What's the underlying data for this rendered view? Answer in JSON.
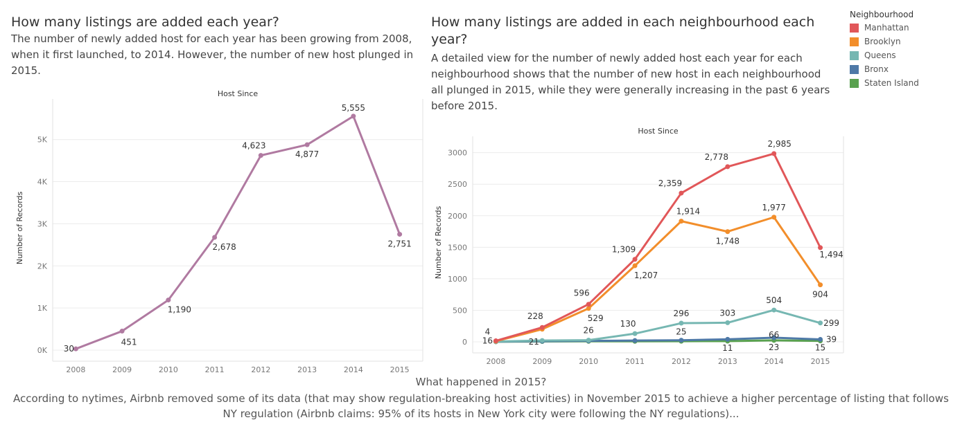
{
  "left": {
    "title": "How many listings are added each year?",
    "description": "The number of newly added host for each year has been growing from 2008, when it first launched, to 2014. However, the number of new host plunged in 2015."
  },
  "right": {
    "title": "How many listings are added in each neighbourhood each year?",
    "description": "A detailed view for the number of newly added host each year for each neighbourhood shows that the number of new host in each neighbourhood all plunged in 2015, while they were generally increasing in the past 6 years before 2015."
  },
  "legend": {
    "title": "Neighbourhood",
    "items": [
      {
        "label": "Manhattan",
        "color": "#e15759"
      },
      {
        "label": "Brooklyn",
        "color": "#f28e2b"
      },
      {
        "label": "Queens",
        "color": "#76b7b2"
      },
      {
        "label": "Bronx",
        "color": "#4e79a7"
      },
      {
        "label": "Staten Island",
        "color": "#59a14f"
      }
    ]
  },
  "footer": {
    "question": "What happened in 2015?",
    "text": "According to nytimes, Airbnb removed some of its data (that may show regulation-breaking host activities) in November 2015 to achieve a higher percentage of listing that follows NY regulation (Airbnb claims: 95% of its hosts in New York city were following the NY regulations)..."
  },
  "chart_data": [
    {
      "type": "line",
      "title": "Host Since",
      "xlabel": "",
      "ylabel": "Number of Records",
      "x": [
        "2008",
        "2009",
        "2010",
        "2011",
        "2012",
        "2013",
        "2014",
        "2015"
      ],
      "ylim": [
        0,
        5800
      ],
      "yticks": [
        0,
        1000,
        2000,
        3000,
        4000,
        5000
      ],
      "ytick_labels": [
        "0K",
        "1K",
        "2K",
        "3K",
        "4K",
        "5K"
      ],
      "series": [
        {
          "color": "#b07aa1",
          "values": [
            30,
            451,
            1190,
            2678,
            4623,
            4877,
            5555,
            2751
          ],
          "labels": [
            "30",
            "451",
            "1,190",
            "2,678",
            "4,623",
            "4,877",
            "5,555",
            "2,751"
          ]
        }
      ]
    },
    {
      "type": "line",
      "title": "Host Since",
      "xlabel": "",
      "ylabel": "Number of Records",
      "x": [
        "2008",
        "2009",
        "2010",
        "2011",
        "2012",
        "2013",
        "2014",
        "2015"
      ],
      "ylim": [
        0,
        3150
      ],
      "yticks": [
        0,
        500,
        1000,
        1500,
        2000,
        2500,
        3000
      ],
      "ytick_labels": [
        "0",
        "500",
        "1000",
        "1500",
        "2000",
        "2500",
        "3000"
      ],
      "series": [
        {
          "name": "Manhattan",
          "color": "#e15759",
          "values": [
            16,
            228,
            596,
            1309,
            2359,
            2778,
            2985,
            1494
          ],
          "labels": [
            "16",
            "228",
            "596",
            "1,309",
            "2,359",
            "2,778",
            "2,985",
            "1,494"
          ]
        },
        {
          "name": "Brooklyn",
          "color": "#f28e2b",
          "values": [
            10,
            200,
            529,
            1207,
            1914,
            1748,
            1977,
            904
          ],
          "labels": [
            "",
            "",
            "529",
            "1,207",
            "1,914",
            "1,748",
            "1,977",
            "904"
          ]
        },
        {
          "name": "Queens",
          "color": "#76b7b2",
          "values": [
            4,
            21,
            26,
            130,
            296,
            303,
            504,
            299
          ],
          "labels": [
            "4",
            "21",
            "26",
            "130",
            "296",
            "303",
            "504",
            "299"
          ]
        },
        {
          "name": "Bronx",
          "color": "#4e79a7",
          "values": [
            2,
            10,
            15,
            20,
            25,
            40,
            66,
            39
          ],
          "labels": [
            "",
            "",
            "",
            "",
            "25",
            "",
            "66",
            "39"
          ]
        },
        {
          "name": "Staten Island",
          "color": "#59a14f",
          "values": [
            1,
            5,
            8,
            8,
            10,
            11,
            23,
            15
          ],
          "labels": [
            "",
            "",
            "",
            "",
            "",
            "11",
            "23",
            "15"
          ]
        }
      ]
    }
  ]
}
